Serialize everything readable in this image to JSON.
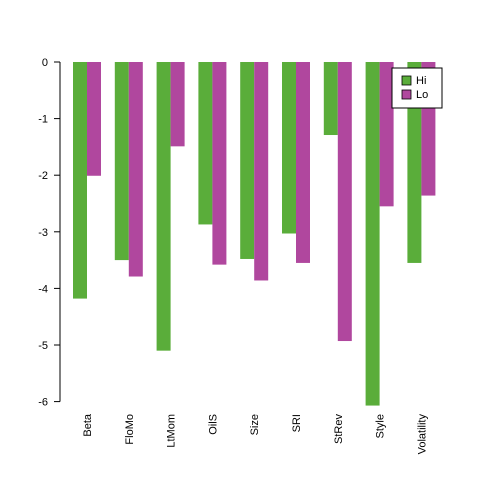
{
  "chart_data": {
    "type": "bar",
    "title": "",
    "xlabel": "",
    "ylabel": "",
    "categories": [
      "Beta",
      "FloMo",
      "LtMom",
      "OilS",
      "Size",
      "SRI",
      "StRev",
      "Style",
      "Volatility"
    ],
    "series": [
      {
        "name": "Hi",
        "color": "#5aad3a",
        "values": [
          -4.18,
          -3.5,
          -5.1,
          -2.87,
          -3.48,
          -3.03,
          -1.29,
          -6.07,
          -3.55
        ]
      },
      {
        "name": "Lo",
        "color": "#b0479e",
        "values": [
          -2.01,
          -3.79,
          -1.49,
          -3.58,
          -3.86,
          -3.55,
          -4.93,
          -2.55,
          -2.36
        ]
      }
    ],
    "ylim": [
      -6,
      0
    ],
    "yticks": [
      0,
      -1,
      -2,
      -3,
      -4,
      -5,
      -6
    ],
    "grid": false,
    "legend_position": "top-right"
  }
}
